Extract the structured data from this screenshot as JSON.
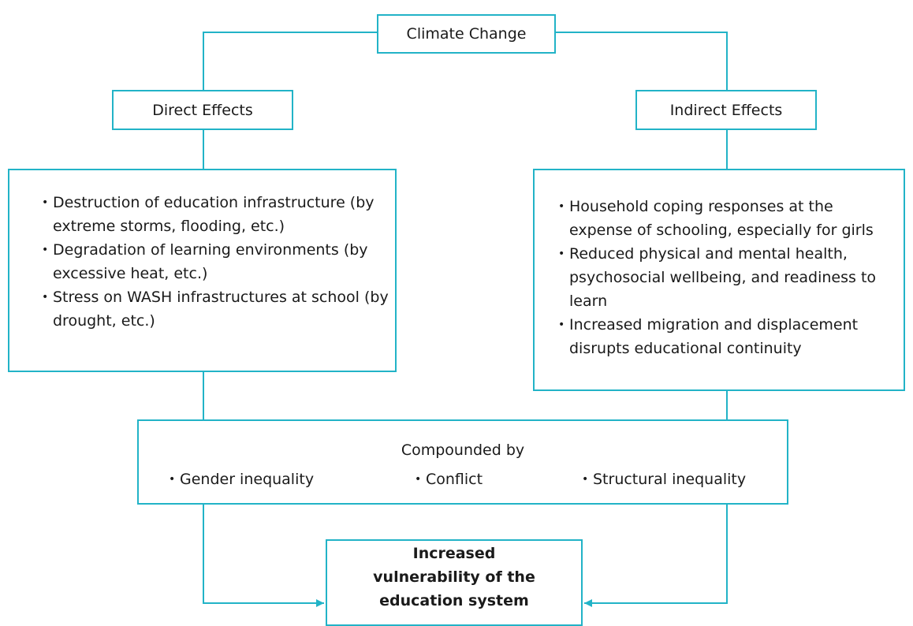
{
  "root": {
    "label": "Climate Change"
  },
  "direct": {
    "label": "Direct Effects",
    "items": [
      "Destruction of education infrastructure (by extreme storms, flooding, etc.)",
      "Degradation of learning environments (by excessive heat, etc.)",
      "Stress on WASH infrastructures at school (by drought, etc.)"
    ]
  },
  "indirect": {
    "label": "Indirect Effects",
    "items": [
      "Household coping responses at the expense of schooling, especially for girls",
      "Reduced physical and mental health, psychosocial wellbeing, and readiness to learn",
      "Increased migration and displacement disrupts educational continuity"
    ]
  },
  "compounded": {
    "label": "Compounded by",
    "items": [
      "Gender inequality",
      "Conflict",
      "Structural inequality"
    ]
  },
  "outcome": {
    "label": "Increased vulnerability of the education system"
  }
}
